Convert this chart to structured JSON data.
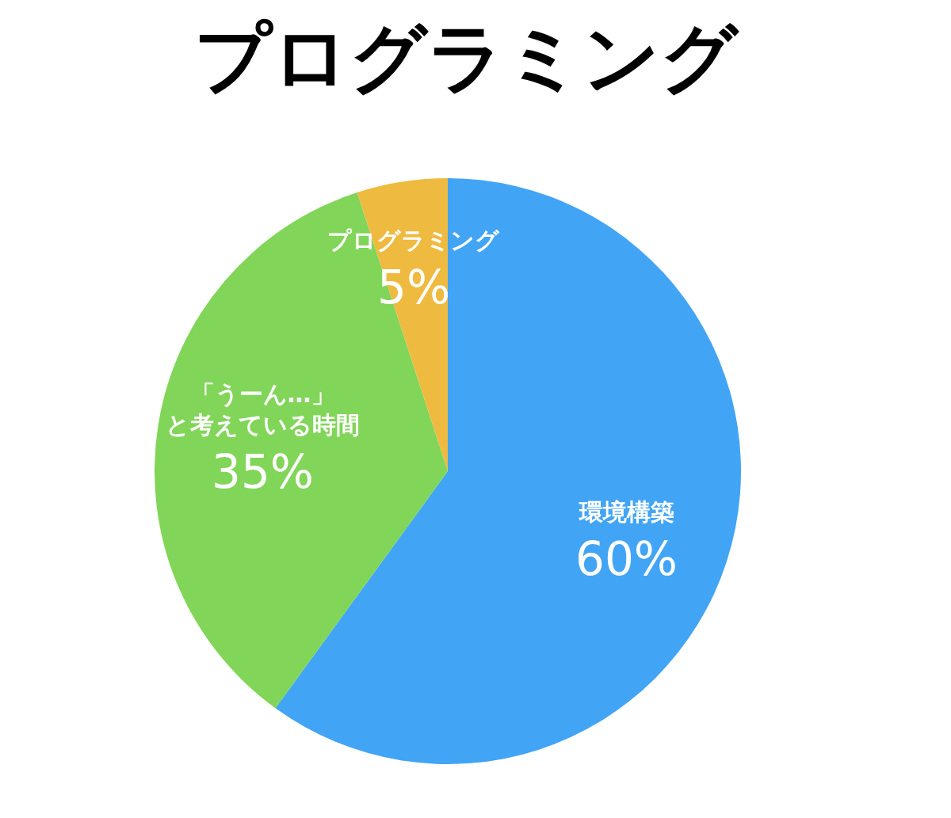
{
  "chart_data": {
    "type": "pie",
    "title": "プログラミング",
    "categories": [
      "環境構築",
      "「うーん…」と考えている時間",
      "プログラミング"
    ],
    "values": [
      60,
      35,
      5
    ],
    "value_labels": [
      "60%",
      "35%",
      "5%"
    ],
    "colors": [
      "#42a4f5",
      "#81d558",
      "#efba40"
    ],
    "legend": false
  }
}
